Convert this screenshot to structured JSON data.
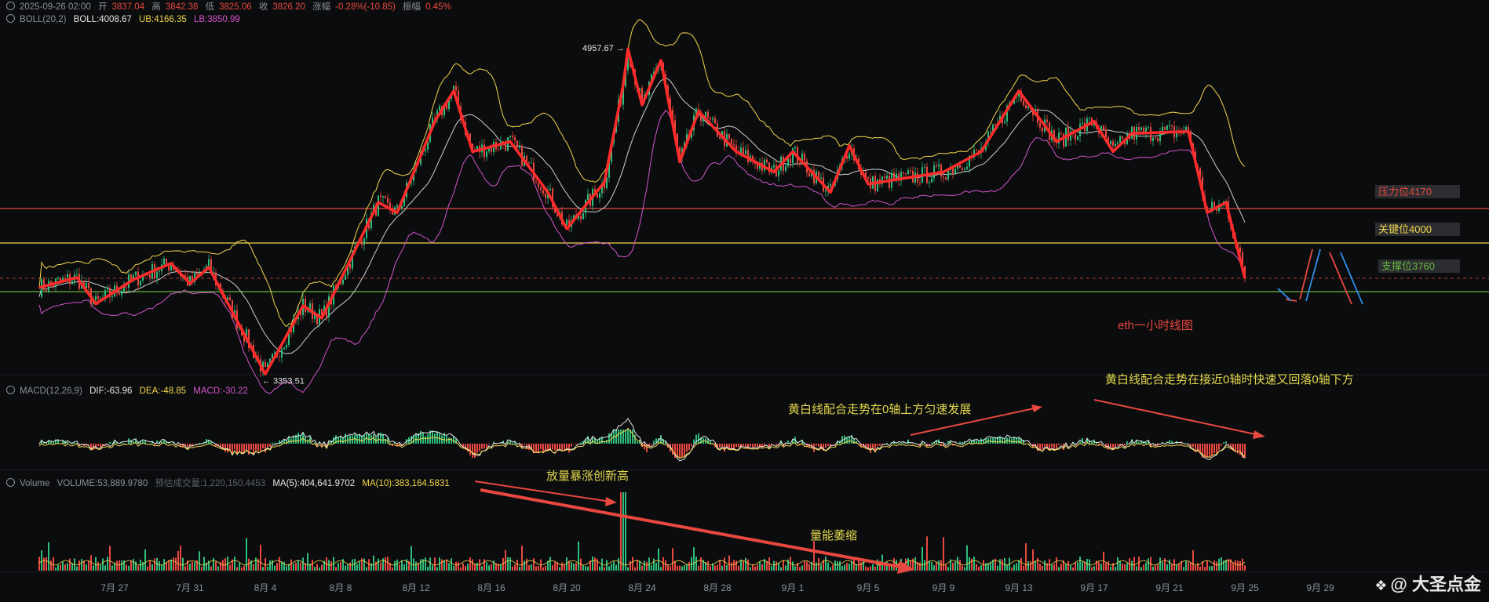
{
  "header": {
    "ohlc": {
      "datetime": "2025-09-26 02:00",
      "open_label": "开",
      "open": "3837.04",
      "high_label": "高",
      "high": "3842.38",
      "low_label": "低",
      "low": "3825.06",
      "close_label": "收",
      "close": "3826.20",
      "change_label": "涨幅",
      "change": "-0.28%(-10.85)",
      "amp_label": "振幅",
      "amp": "0.45%"
    },
    "boll": {
      "name": "BOLL(20,2)",
      "mid": "BOLL:4008.67",
      "ub": "UB:4166.35",
      "lb": "LB:3850.99"
    },
    "macd": {
      "name": "MACD(12,26,9)",
      "dif": "DIF:-63.96",
      "dea": "DEA:-48.85",
      "macd": "MACD:-30.22"
    },
    "volume": {
      "name": "Volume",
      "vol": "VOLUME:53,889.9780",
      "est": "预估成交量:1,220,150.4453",
      "ma5": "MA(5):404,641.9702",
      "ma10": "MA(10):383,164.5831"
    }
  },
  "levels": {
    "resistance": "压力位4170",
    "key": "关键位4000",
    "support": "支撑位3760"
  },
  "annotations": {
    "chart_title": "eth一小时线图",
    "macd_note_1": "黄白线配合走势在0轴上方匀速发展",
    "macd_note_2": "黄白线配合走势在接近0轴时快速又回落0轴下方",
    "vol_note_1": "放量暴涨创新高",
    "vol_note_2": "量能萎缩",
    "high_label": "4957.67",
    "low_label": "3353.51"
  },
  "watermark": "@ 大圣点金",
  "colors": {
    "up": "#2fbd7c",
    "down": "#e8483f",
    "bg": "#0b0c0e",
    "boll_up": "#f2d64b",
    "boll_mid": "#cfcfcf",
    "boll_low": "#d454c9",
    "trend": "#ff2b2b"
  },
  "chart_data": {
    "type": "line",
    "x_ticks": [
      "7月 27",
      "7月 31",
      "8月 4",
      "8月 8",
      "8月 12",
      "8月 16",
      "8月 20",
      "8月 24",
      "8月 28",
      "9月 1",
      "9月 5",
      "9月 9",
      "9月 13",
      "9月 17",
      "9月 21",
      "9月 25",
      "9月 29"
    ],
    "price_swings": [
      {
        "d": "7月 23",
        "p": 3780
      },
      {
        "d": "7月 25",
        "p": 3830
      },
      {
        "d": "7月 26",
        "p": 3700
      },
      {
        "d": "7月 28",
        "p": 3820
      },
      {
        "d": "7月 30",
        "p": 3900
      },
      {
        "d": "7月 31",
        "p": 3800
      },
      {
        "d": "8月 1",
        "p": 3880
      },
      {
        "d": "8月 3",
        "p": 3530
      },
      {
        "d": "8月 4",
        "p": 3353.51
      },
      {
        "d": "8月 6",
        "p": 3690
      },
      {
        "d": "8月 7",
        "p": 3630
      },
      {
        "d": "8月 10",
        "p": 4200
      },
      {
        "d": "8月 11",
        "p": 4150
      },
      {
        "d": "8月 13",
        "p": 4600
      },
      {
        "d": "8月 14",
        "p": 4750
      },
      {
        "d": "8月 15",
        "p": 4450
      },
      {
        "d": "8月 17",
        "p": 4500
      },
      {
        "d": "8月 19",
        "p": 4250
      },
      {
        "d": "8月 20",
        "p": 4070
      },
      {
        "d": "8月 22",
        "p": 4300
      },
      {
        "d": "8月 23",
        "p": 4780
      },
      {
        "d": "8月 23",
        "p": 4957.67
      },
      {
        "d": "8月 24",
        "p": 4680
      },
      {
        "d": "8月 25",
        "p": 4900
      },
      {
        "d": "8月 26",
        "p": 4400
      },
      {
        "d": "8月 27",
        "p": 4650
      },
      {
        "d": "8月 29",
        "p": 4450
      },
      {
        "d": "8月 31",
        "p": 4350
      },
      {
        "d": "9月 1",
        "p": 4450
      },
      {
        "d": "9月 3",
        "p": 4250
      },
      {
        "d": "9月 4",
        "p": 4480
      },
      {
        "d": "9月 5",
        "p": 4290
      },
      {
        "d": "9月 9",
        "p": 4350
      },
      {
        "d": "9月 11",
        "p": 4450
      },
      {
        "d": "9月 13",
        "p": 4750
      },
      {
        "d": "9月 15",
        "p": 4500
      },
      {
        "d": "9月 17",
        "p": 4600
      },
      {
        "d": "9月 18",
        "p": 4450
      },
      {
        "d": "9月 19",
        "p": 4540
      },
      {
        "d": "9月 22",
        "p": 4550
      },
      {
        "d": "9月 23",
        "p": 4150
      },
      {
        "d": "9月 24",
        "p": 4200
      },
      {
        "d": "9月 25",
        "p": 3826.2
      }
    ],
    "horizontal_levels": [
      {
        "name": "压力位4170",
        "value": 4170,
        "color": "#e8483f"
      },
      {
        "name": "关键位4000",
        "value": 4000,
        "color": "#f2d64b"
      },
      {
        "name": "支撑位3760",
        "value": 3760,
        "color": "#67b83a"
      }
    ],
    "ylim": [
      3250,
      5050
    ],
    "volume_spike_date": "8月 23",
    "grid": false
  }
}
